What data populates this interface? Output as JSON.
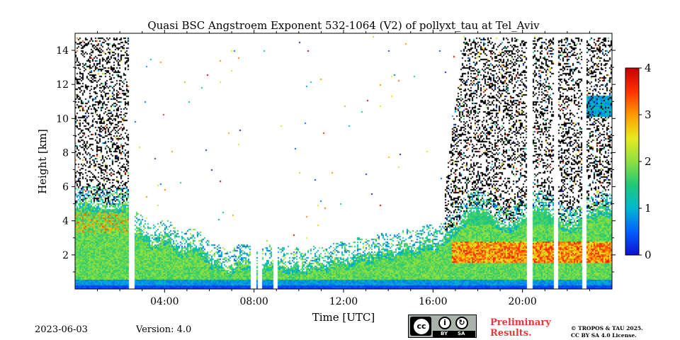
{
  "chart_data": {
    "type": "heatmap",
    "title": "Quasi BSC Angstroem Exponent 532-1064 (V2) of pollyxt_tau at Tel_Aviv",
    "xlabel": "Time [UTC]",
    "ylabel": "Height [km]",
    "xlim_hours": [
      0,
      24
    ],
    "ylim_km": [
      0,
      15
    ],
    "x_ticks": [
      {
        "hour": 4,
        "label": "04:00"
      },
      {
        "hour": 8,
        "label": "08:00"
      },
      {
        "hour": 12,
        "label": "12:00"
      },
      {
        "hour": 16,
        "label": "16:00"
      },
      {
        "hour": 20,
        "label": "20:00"
      }
    ],
    "y_ticks": [
      {
        "km": 2,
        "label": "2"
      },
      {
        "km": 4,
        "label": "4"
      },
      {
        "km": 6,
        "label": "6"
      },
      {
        "km": 8,
        "label": "8"
      },
      {
        "km": 10,
        "label": "10"
      },
      {
        "km": 12,
        "label": "12"
      },
      {
        "km": 14,
        "label": "14"
      }
    ],
    "colorbar": {
      "min": 0,
      "max": 4,
      "ticks": [
        {
          "value": 0,
          "label": "0"
        },
        {
          "value": 1,
          "label": "1"
        },
        {
          "value": 2,
          "label": "2"
        },
        {
          "value": 3,
          "label": "3"
        },
        {
          "value": 4,
          "label": "4"
        }
      ],
      "stops": [
        "#1010d0",
        "#0060ff",
        "#00b8d0",
        "#20c878",
        "#8ee040",
        "#e8ea20",
        "#ff9a00",
        "#ff3000",
        "#c80000"
      ]
    },
    "signal_gaps_hours": [
      2.5,
      7.95,
      8.25,
      8.95,
      20.3,
      21.45,
      22.75
    ],
    "layers": [
      {
        "name": "night aerosol layer",
        "t_start": 0,
        "t_end": 2.5,
        "top_km": 5.1,
        "value": 1.9
      },
      {
        "name": "residual layer",
        "t_start": 2.5,
        "t_end": 6,
        "top_km": 3.5,
        "value": 1.8
      },
      {
        "name": "daytime boundary layer",
        "t_start": 6,
        "t_end": 16,
        "top_km": 2.4,
        "value": 1.7
      },
      {
        "name": "evening aerosol layer",
        "t_start": 16,
        "t_end": 24,
        "top_km": 4.8,
        "value": 2.0
      },
      {
        "name": "lofted layer",
        "t_start": 22.8,
        "t_end": 24,
        "bottom_km": 10.1,
        "top_km": 11.4,
        "value": 0.9
      }
    ]
  },
  "footer": {
    "date": "2023-06-03",
    "version": "Version: 4.0",
    "preliminary_line1": "Preliminary",
    "preliminary_line2": "Results.",
    "copyright_line1": "© TROPOS & TAU 2025.",
    "copyright_line2": "CC BY SA 4.0 License.",
    "cc_by": "BY",
    "cc_sa": "SA"
  }
}
